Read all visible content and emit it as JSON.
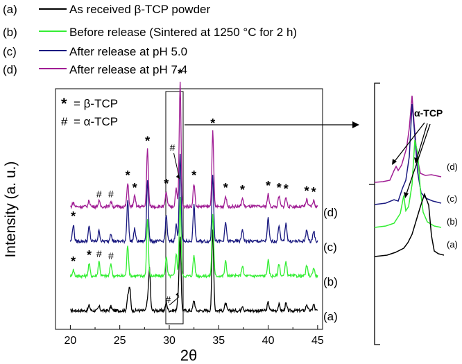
{
  "chart_data": {
    "type": "line",
    "title": "",
    "xlabel": "2θ",
    "ylabel": "Intensity (a. u.)",
    "xlim": [
      18.5,
      45.5
    ],
    "xticks": [
      20,
      25,
      30,
      35,
      40,
      45
    ],
    "legend_position": "top-left",
    "legend": [
      {
        "key": "(a)",
        "label": "As received β-TCP powder",
        "color": "#000000"
      },
      {
        "key": "(b)",
        "label": "Before release (Sintered at 1250 °C for 2 h)",
        "color": "#33ee33"
      },
      {
        "key": "(c)",
        "label": "After release at pH 5.0",
        "color": "#1a1a80"
      },
      {
        "key": "(d)",
        "label": "After release at pH 7.4",
        "color": "#a01d94"
      }
    ],
    "phase_legend": [
      {
        "symbol": "*",
        "label": "= β-TCP"
      },
      {
        "symbol": "#",
        "label": "= α-TCP"
      }
    ],
    "series": [
      {
        "name": "(a)",
        "color": "#000000",
        "offset": 0,
        "peaks": [
          [
            21.9,
            5
          ],
          [
            22.9,
            4
          ],
          [
            24.1,
            4
          ],
          [
            25.8,
            12
          ],
          [
            26.0,
            22
          ],
          [
            27.8,
            8
          ],
          [
            28.0,
            40
          ],
          [
            29.7,
            8
          ],
          [
            30.9,
            12
          ],
          [
            31.1,
            70
          ],
          [
            32.5,
            10
          ],
          [
            34.4,
            78
          ],
          [
            35.7,
            7
          ],
          [
            37.4,
            5
          ],
          [
            40.0,
            8
          ],
          [
            41.1,
            6
          ],
          [
            41.8,
            7
          ],
          [
            43.9,
            6
          ],
          [
            44.6,
            6
          ]
        ]
      },
      {
        "name": "(b)",
        "color": "#33ee33",
        "offset": 1,
        "peaks": [
          [
            20.3,
            6
          ],
          [
            21.9,
            12
          ],
          [
            22.9,
            14
          ],
          [
            24.1,
            12
          ],
          [
            25.8,
            30
          ],
          [
            27.8,
            55
          ],
          [
            29.7,
            18
          ],
          [
            30.7,
            22
          ],
          [
            31.1,
            75
          ],
          [
            32.5,
            20
          ],
          [
            34.4,
            60
          ],
          [
            35.7,
            14
          ],
          [
            37.4,
            10
          ],
          [
            40.0,
            15
          ],
          [
            41.1,
            12
          ],
          [
            41.8,
            14
          ],
          [
            43.9,
            10
          ],
          [
            44.6,
            8
          ]
        ]
      },
      {
        "name": "(c)",
        "color": "#1a1a80",
        "offset": 2,
        "peaks": [
          [
            20.3,
            16
          ],
          [
            21.9,
            14
          ],
          [
            22.9,
            10
          ],
          [
            24.1,
            8
          ],
          [
            25.8,
            40
          ],
          [
            26.5,
            12
          ],
          [
            27.8,
            60
          ],
          [
            29.7,
            25
          ],
          [
            30.7,
            16
          ],
          [
            31.1,
            85
          ],
          [
            32.5,
            35
          ],
          [
            34.4,
            65
          ],
          [
            35.7,
            18
          ],
          [
            37.4,
            12
          ],
          [
            40.0,
            22
          ],
          [
            41.1,
            16
          ],
          [
            41.8,
            18
          ],
          [
            43.9,
            12
          ],
          [
            44.6,
            10
          ]
        ]
      },
      {
        "name": "(d)",
        "color": "#a01d94",
        "offset": 3,
        "peaks": [
          [
            20.3,
            4
          ],
          [
            21.9,
            6
          ],
          [
            22.9,
            5
          ],
          [
            24.1,
            5
          ],
          [
            25.8,
            22
          ],
          [
            26.5,
            10
          ],
          [
            27.8,
            55
          ],
          [
            29.7,
            14
          ],
          [
            30.7,
            18
          ],
          [
            31.1,
            120
          ],
          [
            32.5,
            22
          ],
          [
            34.4,
            72
          ],
          [
            35.7,
            10
          ],
          [
            37.4,
            8
          ],
          [
            40.0,
            12
          ],
          [
            41.1,
            10
          ],
          [
            41.8,
            9
          ],
          [
            43.9,
            7
          ],
          [
            44.6,
            6
          ]
        ]
      }
    ],
    "annotations": {
      "beta_marks_d": [
        25.8,
        26.5,
        27.8,
        29.7,
        31.1,
        32.5,
        34.4,
        35.7,
        37.4,
        40.0,
        41.1,
        41.8,
        43.9,
        44.6
      ],
      "alpha_marks_d": [
        22.9,
        24.1,
        30.6
      ],
      "beta_marks_c": [
        20.3
      ],
      "beta_marks_b": [
        20.3,
        21.9
      ],
      "alpha_marks_b": [
        22.9,
        24.1,
        30.3
      ],
      "beta_symbol": "*",
      "alpha_symbol": "#",
      "inset_label": "α-TCP"
    }
  }
}
